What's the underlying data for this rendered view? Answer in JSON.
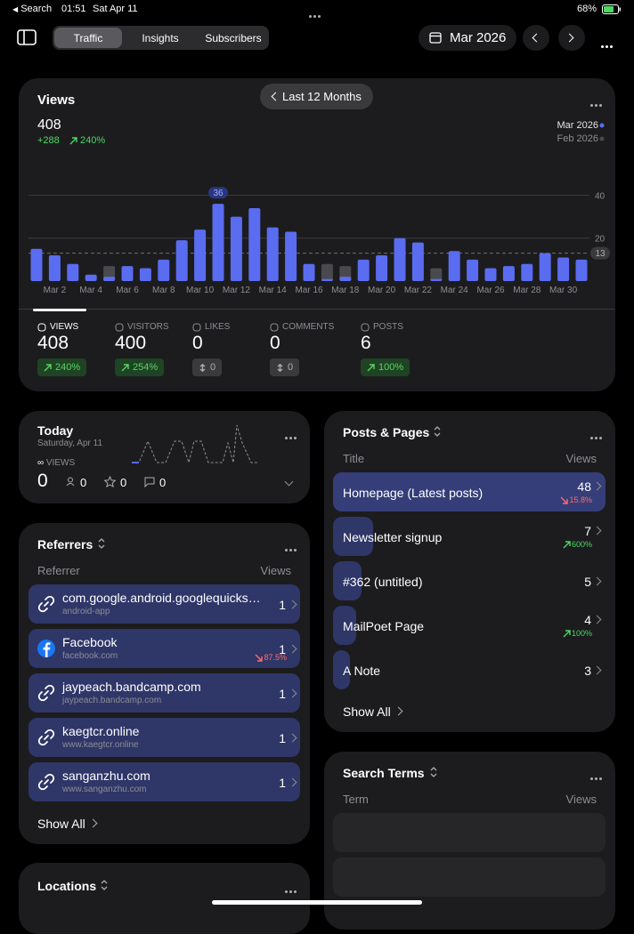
{
  "status_bar": {
    "back": "Search",
    "time": "01:51",
    "date": "Sat Apr 11",
    "battery": "68%"
  },
  "toolbar": {
    "tabs": [
      "Traffic",
      "Insights",
      "Subscribers"
    ],
    "period": "Mar 2026"
  },
  "views_card": {
    "title": "Views",
    "range": "Last 12 Months",
    "total": 408,
    "change": "+288",
    "change_percent": "240%",
    "metrics": [
      {
        "label": "VIEWS",
        "value": 408,
        "change": "240%",
        "trend": "up"
      },
      {
        "label": "VISITORS",
        "value": 400,
        "change": "254%",
        "trend": "up"
      },
      {
        "label": "LIKES",
        "value": 0,
        "change": 0,
        "trend": "flat"
      },
      {
        "label": "COMMENTS",
        "value": 0,
        "change": 0,
        "trend": "flat"
      },
      {
        "label": "POSTS",
        "value": 6,
        "change": "100%",
        "trend": "up"
      }
    ]
  },
  "chart_data": {
    "type": "bar",
    "categories": [
      null,
      "Mar 2",
      null,
      "Mar 4",
      null,
      "Mar 6",
      null,
      "Mar 8",
      null,
      "Mar 10",
      null,
      "Mar 12",
      null,
      "Mar 14",
      null,
      "Mar 16",
      null,
      "Mar 18",
      null,
      "Mar 20",
      null,
      "Mar 22",
      null,
      "Mar 24",
      null,
      "Mar 26",
      null,
      "Mar 28",
      null,
      "Mar 30",
      null
    ],
    "series": [
      {
        "name": "Mar 2026",
        "color": "#5a6cf0",
        "values": [
          15,
          12,
          8,
          3,
          2,
          7,
          6,
          10,
          19,
          24,
          36,
          30,
          34,
          25,
          23,
          8,
          1,
          2,
          10,
          12,
          20,
          18,
          1,
          14,
          10,
          6,
          7,
          8,
          13,
          11,
          10
        ]
      },
      {
        "name": "Feb 2026",
        "color": "#4a4a4e",
        "values": [
          null,
          null,
          null,
          null,
          7,
          null,
          null,
          null,
          null,
          null,
          null,
          null,
          null,
          null,
          null,
          null,
          8,
          7,
          null,
          null,
          null,
          null,
          6,
          null,
          null,
          null,
          null,
          null,
          null,
          null,
          null
        ]
      }
    ],
    "ylim": [
      0,
      46
    ],
    "yticks": [
      20,
      40
    ],
    "reference_line": 13,
    "grid": true
  },
  "today": {
    "title": "Today",
    "date": "Saturday, Apr 11",
    "label": "VIEWS",
    "views": 0,
    "visitors": 0,
    "likes": 0,
    "comments": 0
  },
  "referrers": {
    "title": "Referrers",
    "column_left": "Referrer",
    "column_right": "Views",
    "rows": [
      {
        "name": "com.google.android.googlequicks…",
        "sub": "android-app",
        "views": 1,
        "icon": "link"
      },
      {
        "name": "Facebook",
        "sub": "facebook.com",
        "views": 1,
        "change": "87.5%",
        "trend": "down",
        "icon": "facebook"
      },
      {
        "name": "jaypeach.bandcamp.com",
        "sub": "jaypeach.bandcamp.com",
        "views": 1,
        "icon": "link"
      },
      {
        "name": "kaegtcr.online",
        "sub": "www.kaegtcr.online",
        "views": 1,
        "icon": "link"
      },
      {
        "name": "sanganzhu.com",
        "sub": "www.sanganzhu.com",
        "views": 1,
        "icon": "link"
      }
    ],
    "show_all": "Show All"
  },
  "posts_pages": {
    "title": "Posts & Pages",
    "column_left": "Title",
    "column_right": "Views",
    "rows": [
      {
        "name": "Homepage (Latest posts)",
        "views": 48,
        "change": "15.8%",
        "trend": "down"
      },
      {
        "name": "Newsletter signup",
        "views": 7,
        "change": "600%",
        "trend": "up"
      },
      {
        "name": "#362 (untitled)",
        "views": 5
      },
      {
        "name": "MailPoet Page",
        "views": 4,
        "change": "100%",
        "trend": "up"
      },
      {
        "name": "A Note",
        "views": 3
      }
    ],
    "show_all": "Show All"
  },
  "search_terms": {
    "title": "Search Terms",
    "column_left": "Term",
    "column_right": "Views"
  },
  "locations": {
    "title": "Locations"
  }
}
